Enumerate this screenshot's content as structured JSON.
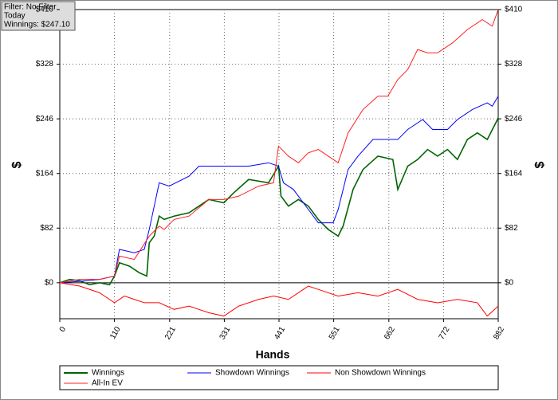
{
  "chart_data": {
    "type": "line",
    "annotation": [
      "Filter: No Filter",
      "Today",
      "Winnings: $247.10"
    ],
    "xlabel": "Hands",
    "ylabel": "$",
    "y2label": "$",
    "xlim": [
      0,
      882
    ],
    "xticks": [
      0,
      110,
      221,
      331,
      441,
      551,
      662,
      772,
      882
    ],
    "ylim": [
      -54,
      410
    ],
    "yticks": [
      {
        "value": 0,
        "label": "$0"
      },
      {
        "value": 82,
        "label": "$82"
      },
      {
        "value": 164,
        "label": "$164"
      },
      {
        "value": 246,
        "label": "$246"
      },
      {
        "value": 328,
        "label": "$328"
      },
      {
        "value": 410,
        "label": "$410"
      }
    ],
    "y2lim": [
      -54,
      410
    ],
    "y2ticks": [
      {
        "value": 0,
        "label": "$0"
      },
      {
        "value": 82,
        "label": "$82"
      },
      {
        "value": 164,
        "label": "$164"
      },
      {
        "value": 246,
        "label": "$246"
      },
      {
        "value": 328,
        "label": "$328"
      },
      {
        "value": 410,
        "label": "$410"
      }
    ],
    "grid": true,
    "legend": "bottom",
    "series": [
      {
        "name": "Winnings",
        "color": "#006400",
        "x": [
          0,
          20,
          40,
          60,
          80,
          100,
          110,
          120,
          140,
          160,
          175,
          180,
          190,
          200,
          210,
          230,
          260,
          280,
          300,
          330,
          350,
          380,
          420,
          440,
          445,
          460,
          480,
          500,
          520,
          540,
          560,
          570,
          590,
          610,
          640,
          670,
          680,
          700,
          720,
          740,
          760,
          780,
          800,
          820,
          840,
          860,
          882
        ],
        "values": [
          0,
          5,
          3,
          -3,
          0,
          -3,
          10,
          30,
          25,
          15,
          10,
          60,
          70,
          100,
          95,
          100,
          105,
          115,
          125,
          120,
          135,
          155,
          150,
          175,
          130,
          115,
          125,
          115,
          95,
          80,
          70,
          85,
          140,
          170,
          190,
          185,
          140,
          175,
          185,
          200,
          190,
          200,
          185,
          215,
          225,
          215,
          247.1
        ]
      },
      {
        "name": "Showdown Winnings",
        "color": "#0000ff",
        "x": [
          0,
          40,
          80,
          110,
          120,
          150,
          170,
          180,
          200,
          220,
          260,
          280,
          300,
          330,
          380,
          420,
          440,
          450,
          470,
          500,
          520,
          550,
          560,
          580,
          600,
          630,
          660,
          680,
          700,
          730,
          750,
          780,
          800,
          830,
          860,
          870,
          882
        ],
        "values": [
          0,
          2,
          5,
          10,
          50,
          45,
          50,
          80,
          150,
          145,
          160,
          175,
          175,
          175,
          175,
          180,
          175,
          150,
          140,
          110,
          90,
          90,
          110,
          170,
          190,
          215,
          215,
          215,
          230,
          245,
          230,
          230,
          245,
          260,
          270,
          265,
          280
        ]
      },
      {
        "name": "Non Showdown Winnings",
        "color": "#ff0000",
        "x": [
          0,
          40,
          80,
          110,
          130,
          150,
          170,
          200,
          230,
          260,
          300,
          330,
          360,
          400,
          430,
          460,
          500,
          520,
          560,
          600,
          640,
          680,
          720,
          760,
          800,
          840,
          860,
          882
        ],
        "values": [
          0,
          -5,
          -15,
          -30,
          -20,
          -25,
          -30,
          -30,
          -40,
          -35,
          -45,
          -50,
          -35,
          -25,
          -20,
          -25,
          -5,
          -10,
          -20,
          -15,
          -20,
          -10,
          -25,
          -30,
          -25,
          -30,
          -50,
          -35
        ]
      },
      {
        "name": "All-In EV",
        "color": "#ff2020",
        "x": [
          0,
          40,
          80,
          110,
          120,
          150,
          180,
          200,
          210,
          230,
          260,
          300,
          330,
          360,
          400,
          430,
          440,
          460,
          480,
          500,
          520,
          540,
          560,
          580,
          610,
          640,
          660,
          680,
          700,
          720,
          740,
          760,
          790,
          820,
          850,
          870,
          882
        ],
        "values": [
          0,
          5,
          5,
          10,
          40,
          35,
          70,
          85,
          80,
          95,
          100,
          125,
          125,
          130,
          145,
          150,
          205,
          190,
          180,
          195,
          200,
          190,
          180,
          225,
          260,
          280,
          280,
          305,
          320,
          350,
          345,
          345,
          360,
          380,
          395,
          385,
          410
        ]
      }
    ]
  }
}
